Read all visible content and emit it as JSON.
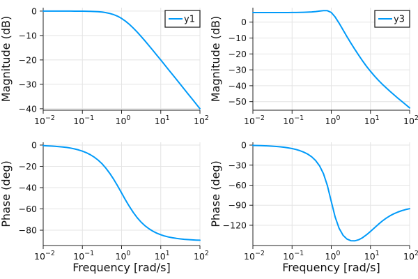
{
  "figure": {
    "background": "#ffffff",
    "line_color": "#009af9",
    "grid_color": "#e4e4e4",
    "spine_color": "#222222",
    "text_color": "#111111",
    "xtick_base": "10",
    "legend_position": "top-right"
  },
  "chart_data": [
    {
      "id": "magnitude-y1",
      "type": "line",
      "ylabel": "Magnitude (dB)",
      "xlabel": "",
      "legend": "y1",
      "xscale": "log",
      "grid": true,
      "xlim_log": [
        -2,
        2
      ],
      "xticks_log": [
        -2,
        -1,
        0,
        1,
        2
      ],
      "ylim": [
        -40.6,
        1.4
      ],
      "yticks": [
        0,
        -10,
        -20,
        -30,
        -40
      ],
      "series": [
        {
          "name": "y1",
          "color": "#009af9",
          "x_log": [
            -2,
            -1.9,
            -1.8,
            -1.7,
            -1.6,
            -1.5,
            -1.4,
            -1.3,
            -1.2,
            -1.1,
            -1,
            -0.9,
            -0.8,
            -0.7,
            -0.6,
            -0.5,
            -0.4,
            -0.3,
            -0.2,
            -0.1,
            0,
            0.1,
            0.2,
            0.3,
            0.4,
            0.5,
            0.6,
            0.7,
            0.8,
            0.9,
            1,
            1.1,
            1.2,
            1.3,
            1.4,
            1.5,
            1.6,
            1.7,
            1.8,
            1.9,
            2
          ],
          "y": [
            0,
            0,
            0,
            0,
            0,
            0,
            -0.01,
            -0.01,
            -0.02,
            -0.03,
            -0.04,
            -0.07,
            -0.11,
            -0.17,
            -0.27,
            -0.41,
            -0.64,
            -0.97,
            -1.46,
            -2.12,
            -3.01,
            -4.12,
            -5.46,
            -6.97,
            -8.64,
            -10.41,
            -12.27,
            -14.17,
            -16.11,
            -18.07,
            -20.04,
            -22.03,
            -24.02,
            -26.01,
            -28.01,
            -30,
            -32,
            -34,
            -36,
            -38,
            -40
          ]
        }
      ]
    },
    {
      "id": "magnitude-y3",
      "type": "line",
      "ylabel": "Magnitude (dB)",
      "xlabel": "",
      "legend": "y3",
      "xscale": "log",
      "grid": true,
      "xlim_log": [
        -2,
        2
      ],
      "xticks_log": [
        -2,
        -1,
        0,
        1,
        2
      ],
      "ylim": [
        -55.4,
        9.1
      ],
      "yticks": [
        0,
        -10,
        -20,
        -30,
        -40,
        -50
      ],
      "series": [
        {
          "name": "y3",
          "color": "#009af9",
          "x_log": [
            -2,
            -1.9,
            -1.8,
            -1.7,
            -1.6,
            -1.5,
            -1.4,
            -1.3,
            -1.2,
            -1.1,
            -1,
            -0.9,
            -0.8,
            -0.7,
            -0.6,
            -0.5,
            -0.4,
            -0.3,
            -0.2,
            -0.1,
            0,
            0.1,
            0.2,
            0.3,
            0.4,
            0.5,
            0.6,
            0.7,
            0.8,
            0.9,
            1,
            1.1,
            1.2,
            1.3,
            1.4,
            1.5,
            1.6,
            1.7,
            1.8,
            1.9,
            2
          ],
          "y": [
            6.02,
            6.02,
            6.02,
            6.02,
            6.02,
            6.02,
            6.03,
            6.03,
            6.04,
            6.05,
            6.06,
            6.09,
            6.13,
            6.19,
            6.29,
            6.43,
            6.65,
            6.94,
            7.23,
            7.2,
            6.06,
            3.24,
            -0.68,
            -4.9,
            -9.09,
            -13.16,
            -17.08,
            -20.84,
            -24.42,
            -27.79,
            -30.93,
            -33.83,
            -36.51,
            -39,
            -41.33,
            -43.56,
            -45.71,
            -47.81,
            -49.87,
            -51.91,
            -53.94
          ]
        }
      ]
    },
    {
      "id": "phase-y1",
      "type": "line",
      "ylabel": "Phase (deg)",
      "xlabel": "Frequency [rad/s]",
      "legend": null,
      "xscale": "log",
      "grid": true,
      "xlim_log": [
        -2,
        2
      ],
      "xticks_log": [
        -2,
        -1,
        0,
        1,
        2
      ],
      "ylim": [
        -94.4,
        2.6
      ],
      "yticks": [
        0,
        -20,
        -40,
        -60,
        -80
      ],
      "series": [
        {
          "name": "y1",
          "color": "#009af9",
          "x_log": [
            -2,
            -1.9,
            -1.8,
            -1.7,
            -1.6,
            -1.5,
            -1.4,
            -1.3,
            -1.2,
            -1.1,
            -1,
            -0.9,
            -0.8,
            -0.7,
            -0.6,
            -0.5,
            -0.4,
            -0.3,
            -0.2,
            -0.1,
            0,
            0.1,
            0.2,
            0.3,
            0.4,
            0.5,
            0.6,
            0.7,
            0.8,
            0.9,
            1,
            1.1,
            1.2,
            1.3,
            1.4,
            1.5,
            1.6,
            1.7,
            1.8,
            1.9,
            2
          ],
          "y": [
            -0.57,
            -0.72,
            -0.91,
            -1.14,
            -1.44,
            -1.81,
            -2.28,
            -2.87,
            -3.61,
            -4.54,
            -5.71,
            -7.18,
            -9.01,
            -11.31,
            -14.11,
            -17.55,
            -21.7,
            -26.62,
            -32.26,
            -38.45,
            -45,
            -51.55,
            -57.75,
            -63.38,
            -68.3,
            -72.45,
            -75.89,
            -78.69,
            -80.99,
            -82.82,
            -84.29,
            -85.46,
            -86.39,
            -87.13,
            -87.72,
            -88.19,
            -88.56,
            -88.86,
            -89.09,
            -89.28,
            -89.43
          ]
        }
      ]
    },
    {
      "id": "phase-y3",
      "type": "line",
      "ylabel": "Phase (deg)",
      "xlabel": "Frequency [rad/s]",
      "legend": null,
      "xscale": "log",
      "grid": true,
      "xlim_log": [
        -2,
        2
      ],
      "xticks_log": [
        -2,
        -1,
        0,
        1,
        2
      ],
      "ylim": [
        -150.3,
        4.2
      ],
      "yticks": [
        0,
        -30,
        -60,
        -90,
        -120
      ],
      "series": [
        {
          "name": "y3",
          "color": "#009af9",
          "x_log": [
            -2,
            -1.9,
            -1.8,
            -1.7,
            -1.6,
            -1.5,
            -1.4,
            -1.3,
            -1.2,
            -1.1,
            -1,
            -0.9,
            -0.8,
            -0.7,
            -0.6,
            -0.5,
            -0.4,
            -0.3,
            -0.2,
            -0.1,
            0,
            0.1,
            0.2,
            0.3,
            0.4,
            0.5,
            0.6,
            0.7,
            0.8,
            0.9,
            1,
            1.1,
            1.2,
            1.3,
            1.4,
            1.5,
            1.6,
            1.7,
            1.8,
            1.9,
            2
          ],
          "y": [
            -0.52,
            -0.65,
            -0.82,
            -1.03,
            -1.3,
            -1.63,
            -2.06,
            -2.59,
            -3.26,
            -4.12,
            -5.19,
            -6.57,
            -8.33,
            -10.6,
            -13.57,
            -17.55,
            -23.04,
            -30.92,
            -42.74,
            -60.54,
            -84.29,
            -107.74,
            -124.64,
            -134.92,
            -140.58,
            -143.09,
            -143.3,
            -141.63,
            -138.51,
            -134.25,
            -129.23,
            -123.88,
            -118.62,
            -113.73,
            -109.42,
            -105.73,
            -102.66,
            -100.14,
            -98.09,
            -96.45,
            -95.14
          ]
        }
      ]
    }
  ]
}
